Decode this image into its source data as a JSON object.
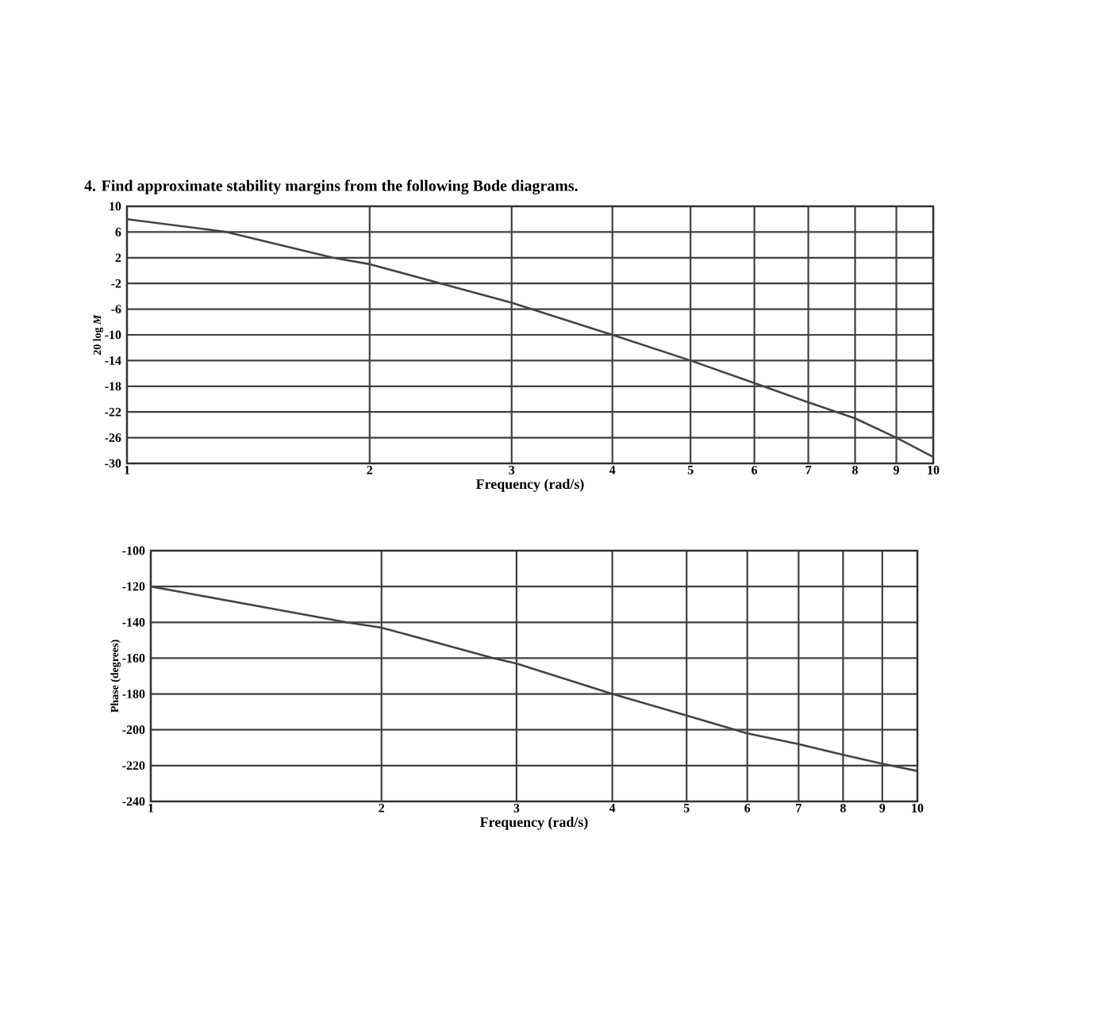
{
  "chart_data": [
    {
      "type": "line",
      "title": "4. Find approximate stability margins from the following Bode diagrams.",
      "xlabel": "Frequency (rad/s)",
      "ylabel": "20 log *M*",
      "log": "x",
      "grid": true,
      "marker": "none",
      "line_style": "solid",
      "xlim": [
        1,
        10
      ],
      "xticks": [
        1,
        2,
        3,
        4,
        5,
        6,
        7,
        8,
        9,
        10
      ],
      "ylim": [
        -30,
        10
      ],
      "yticks": [
        10,
        6,
        2,
        -2,
        -6,
        -10,
        -14,
        -18,
        -22,
        -26,
        -30
      ],
      "x": [
        1,
        1.33,
        1.8,
        2,
        3,
        4,
        5,
        6,
        7,
        8,
        9,
        10
      ],
      "series": [
        {
          "color": "#444444",
          "values": [
            8,
            6,
            2,
            1,
            -5,
            -10,
            -14,
            -17.5,
            -20.5,
            -23,
            -26,
            -29
          ]
        }
      ]
    },
    {
      "type": "line",
      "xlabel": "Frequency (rad/s)",
      "ylabel": "Phase (degrees)",
      "log": "x",
      "grid": true,
      "marker": "none",
      "line_style": "solid",
      "xlim": [
        1,
        10
      ],
      "xticks": [
        1,
        2,
        3,
        4,
        5,
        6,
        7,
        8,
        9,
        10
      ],
      "ylim": [
        -240,
        -100
      ],
      "yticks": [
        -100,
        -120,
        -140,
        -160,
        -180,
        -200,
        -220,
        -240
      ],
      "x": [
        1,
        1.8,
        2,
        2.8,
        3,
        4,
        5,
        6,
        7,
        8,
        9,
        10
      ],
      "series": [
        {
          "color": "#444444",
          "values": [
            -120,
            -140,
            -143,
            -160,
            -163,
            -180,
            -192,
            -202,
            -208,
            -214,
            -219,
            -223
          ]
        }
      ]
    }
  ]
}
